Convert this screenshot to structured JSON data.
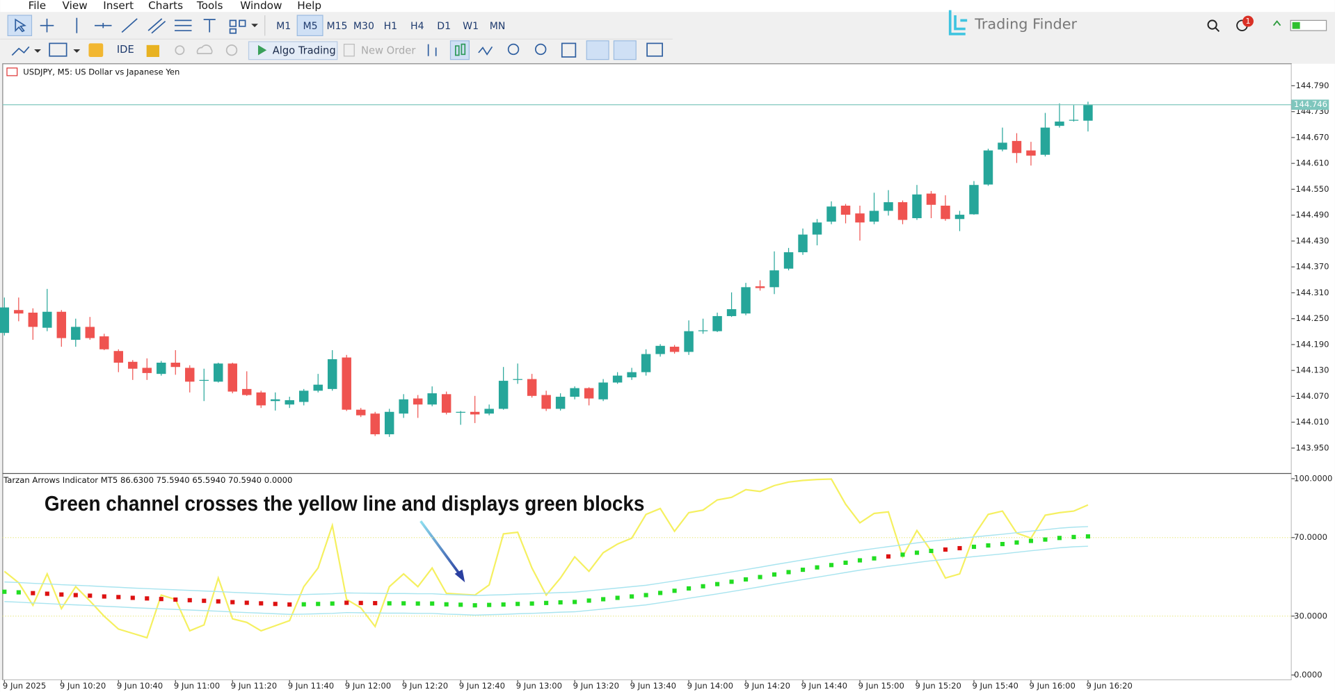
{
  "menu": [
    "File",
    "View",
    "Insert",
    "Charts",
    "Tools",
    "Window",
    "Help"
  ],
  "timeframes": [
    "M1",
    "M5",
    "M15",
    "M30",
    "H1",
    "H4",
    "D1",
    "W1",
    "MN"
  ],
  "toolbar": {
    "ide": "IDE",
    "algo_trading": "Algo Trading",
    "new_order": "New Order"
  },
  "brand": "Trading Finder",
  "notifications": 1,
  "chart_data": [
    {
      "type": "candlestick",
      "title": "USDJPY, M5:  US Dollar vs Japanese Yen",
      "open": [
        144.217,
        144.27,
        144.264,
        144.229,
        144.266,
        144.201,
        144.231,
        144.209,
        144.175,
        144.15,
        144.136,
        144.122,
        144.148,
        144.136,
        144.106,
        144.104,
        144.146,
        144.087,
        144.079,
        144.059,
        144.051,
        144.057,
        144.083,
        144.087,
        144.16,
        144.039,
        144.03,
        143.982,
        144.03,
        144.065,
        144.051,
        144.075,
        144.032,
        144.034,
        144.03,
        144.041,
        144.108,
        144.11,
        144.073,
        144.041,
        144.069,
        144.089,
        144.063,
        144.102,
        144.114,
        144.126,
        144.168,
        144.185,
        144.173,
        144.221,
        144.221,
        144.256,
        144.262,
        144.325,
        144.323,
        144.366,
        144.404,
        144.445,
        144.475,
        144.512,
        144.494,
        144.475,
        144.5,
        144.52,
        144.483,
        144.54,
        144.512,
        144.481,
        144.492,
        144.561,
        144.642,
        144.662,
        144.64,
        144.63,
        144.697,
        144.709,
        144.709
      ],
      "high": [
        144.299,
        144.299,
        144.274,
        144.319,
        144.27,
        144.25,
        144.254,
        144.215,
        144.179,
        144.154,
        144.158,
        144.152,
        144.177,
        144.142,
        144.134,
        144.148,
        144.148,
        144.128,
        144.083,
        144.079,
        144.069,
        144.087,
        144.122,
        144.177,
        144.166,
        144.043,
        144.034,
        144.041,
        144.075,
        144.073,
        144.093,
        144.081,
        144.036,
        144.071,
        144.051,
        144.138,
        144.146,
        144.122,
        144.083,
        144.077,
        144.093,
        144.091,
        144.11,
        144.126,
        144.136,
        144.179,
        144.191,
        144.189,
        144.246,
        144.25,
        144.264,
        144.311,
        144.333,
        144.339,
        144.406,
        144.414,
        144.459,
        144.481,
        144.522,
        144.516,
        144.512,
        144.542,
        144.548,
        144.524,
        144.56,
        144.546,
        144.536,
        144.5,
        144.569,
        144.644,
        144.693,
        144.68,
        144.66,
        144.727,
        144.749,
        144.745,
        144.753
      ],
      "low": [
        144.211,
        144.244,
        144.201,
        144.221,
        144.185,
        144.185,
        144.201,
        144.177,
        144.126,
        144.108,
        144.108,
        144.118,
        144.12,
        144.079,
        144.059,
        144.102,
        144.077,
        144.071,
        144.043,
        144.037,
        144.043,
        144.049,
        144.079,
        144.083,
        144.036,
        144.022,
        143.978,
        143.976,
        144.02,
        144.02,
        144.047,
        144.028,
        144.004,
        144.008,
        144.026,
        144.039,
        144.099,
        144.067,
        144.036,
        144.037,
        144.063,
        144.049,
        144.059,
        144.099,
        144.108,
        144.118,
        144.162,
        144.169,
        144.166,
        144.215,
        144.219,
        144.254,
        144.258,
        144.315,
        144.307,
        144.362,
        144.398,
        144.42,
        144.469,
        144.471,
        144.431,
        144.469,
        144.489,
        144.469,
        144.479,
        144.483,
        144.477,
        144.453,
        144.491,
        144.558,
        144.638,
        144.611,
        144.605,
        144.626,
        144.693,
        144.707,
        144.684
      ],
      "close": [
        144.276,
        144.262,
        144.231,
        144.266,
        144.205,
        144.231,
        144.205,
        144.179,
        144.148,
        144.134,
        144.124,
        144.148,
        144.138,
        144.104,
        144.108,
        144.146,
        144.081,
        144.073,
        144.049,
        144.063,
        144.061,
        144.083,
        144.097,
        144.156,
        144.039,
        144.026,
        143.982,
        144.034,
        144.063,
        144.051,
        144.077,
        144.032,
        144.034,
        144.028,
        144.041,
        144.106,
        144.11,
        144.071,
        144.041,
        144.069,
        144.089,
        144.065,
        144.102,
        144.118,
        144.126,
        144.168,
        144.187,
        144.173,
        144.221,
        144.223,
        144.256,
        144.272,
        144.323,
        144.321,
        144.362,
        144.404,
        144.445,
        144.473,
        144.51,
        144.491,
        144.473,
        144.5,
        144.52,
        144.479,
        144.538,
        144.514,
        144.481,
        144.491,
        144.56,
        144.64,
        144.658,
        144.634,
        144.628,
        144.693,
        144.707,
        144.711,
        144.746
      ],
      "up_color": "#26a69a",
      "down_color": "#ef5350",
      "last_price": 144.746,
      "last_price_color": "#7fc6bd",
      "ylim": [
        143.893,
        144.839
      ],
      "yticks": [
        {
          "value": 144.79,
          "label": "144.790"
        },
        {
          "value": 144.73,
          "label": "144.730"
        },
        {
          "value": 144.67,
          "label": "144.670"
        },
        {
          "value": 144.61,
          "label": "144.610"
        },
        {
          "value": 144.55,
          "label": "144.550"
        },
        {
          "value": 144.49,
          "label": "144.490"
        },
        {
          "value": 144.43,
          "label": "144.430"
        },
        {
          "value": 144.37,
          "label": "144.370"
        },
        {
          "value": 144.31,
          "label": "144.310"
        },
        {
          "value": 144.25,
          "label": "144.250"
        },
        {
          "value": 144.19,
          "label": "144.190"
        },
        {
          "value": 144.13,
          "label": "144.130"
        },
        {
          "value": 144.07,
          "label": "144.070"
        },
        {
          "value": 144.01,
          "label": "144.010"
        },
        {
          "value": 143.95,
          "label": "143.950"
        }
      ]
    },
    {
      "type": "line",
      "title": "Tarzan Arrows Indicator MT5 86.6300 75.5940 65.5940 70.5940 0.0000",
      "annotation": "Green channel crosses the yellow line and displays green blocks",
      "categories": [
        "9 Jun 2025",
        null,
        null,
        null,
        "9 Jun 10:20",
        null,
        null,
        null,
        "9 Jun 10:40",
        null,
        null,
        null,
        "9 Jun 11:00",
        null,
        null,
        null,
        "9 Jun 11:20",
        null,
        null,
        null,
        "9 Jun 11:40",
        null,
        null,
        null,
        "9 Jun 12:00",
        null,
        null,
        null,
        "9 Jun 12:20",
        null,
        null,
        null,
        "9 Jun 12:40",
        null,
        null,
        null,
        "9 Jun 13:00",
        null,
        null,
        null,
        "9 Jun 13:20",
        null,
        null,
        null,
        "9 Jun 13:40",
        null,
        null,
        null,
        "9 Jun 14:00",
        null,
        null,
        null,
        "9 Jun 14:20",
        null,
        null,
        null,
        "9 Jun 14:40",
        null,
        null,
        null,
        "9 Jun 15:00",
        null,
        null,
        null,
        "9 Jun 15:20",
        null,
        null,
        null,
        "9 Jun 15:40",
        null,
        null,
        null,
        "9 Jun 16:00",
        null,
        null,
        null,
        "9 Jun 16:20"
      ],
      "series": [
        {
          "color": "#f5f060",
          "values": [
            52.8,
            47,
            35.5,
            51.5,
            33.8,
            45,
            37.7,
            29.9,
            23.4,
            21.2,
            19,
            40.7,
            38.5,
            22.5,
            25.5,
            49.4,
            28.6,
            26.8,
            22.5,
            25.1,
            27.7,
            45,
            54.5,
            76.2,
            38.5,
            34.2,
            24.7,
            45,
            51.5,
            45,
            54.5,
            41.6,
            41.1,
            40.7,
            45.9,
            71.9,
            72.7,
            54.5,
            40.7,
            49.4,
            60.2,
            52.8,
            62.3,
            66.7,
            69.7,
            81.8,
            84.8,
            73.2,
            82.7,
            84,
            89.2,
            90.5,
            94.4,
            93.5,
            96.5,
            98.3,
            99.1,
            99.6,
            99.8,
            87,
            77.5,
            82.3,
            83.1,
            60.2,
            73.6,
            63.2,
            49.4,
            51.5,
            71,
            81.8,
            83.5,
            72.3,
            69.7,
            81.4,
            82.7,
            83.5,
            86.63
          ]
        },
        {
          "color": "#a8e4ef",
          "values": [
            47.4,
            47.1,
            46.7,
            46.4,
            46.0,
            45.7,
            45.4,
            45.0,
            44.7,
            44.3,
            44.0,
            43.7,
            43.4,
            43.1,
            42.8,
            42.5,
            42.1,
            41.8,
            41.5,
            41.2,
            40.9,
            41.0,
            41.2,
            41.4,
            41.8,
            41.7,
            41.6,
            41.5,
            41.5,
            41.4,
            41.4,
            41.0,
            40.8,
            40.5,
            40.7,
            40.9,
            41.2,
            41.4,
            41.7,
            42.0,
            42.2,
            42.9,
            43.6,
            44.3,
            45.0,
            45.7,
            46.8,
            47.9,
            49.1,
            50.2,
            51.3,
            52.5,
            53.7,
            54.9,
            56.2,
            57.4,
            58.6,
            59.8,
            61.0,
            62.2,
            63.4,
            64.4,
            65.4,
            66.3,
            67.3,
            68.2,
            68.9,
            69.6,
            70.3,
            71.0,
            71.7,
            72.5,
            73.3,
            74.0,
            74.8,
            75.3,
            75.594
          ]
        },
        {
          "color": "#a8e4ef",
          "values": [
            37.4,
            37.1,
            36.7,
            36.4,
            36.0,
            35.7,
            35.4,
            35.0,
            34.7,
            34.3,
            34.0,
            33.7,
            33.4,
            33.1,
            32.8,
            32.5,
            32.1,
            31.8,
            31.5,
            31.2,
            30.9,
            31.0,
            31.2,
            31.4,
            31.8,
            31.7,
            31.6,
            31.5,
            31.5,
            31.4,
            31.4,
            31.0,
            30.8,
            30.5,
            30.7,
            30.9,
            31.2,
            31.4,
            31.7,
            32.0,
            32.2,
            32.9,
            33.6,
            34.3,
            35.0,
            35.7,
            36.8,
            37.9,
            39.1,
            40.2,
            41.3,
            42.5,
            43.7,
            44.9,
            46.2,
            47.4,
            48.6,
            49.8,
            51.0,
            52.2,
            53.4,
            54.4,
            55.4,
            56.3,
            57.3,
            58.2,
            58.9,
            59.6,
            60.3,
            61.0,
            61.7,
            62.5,
            63.3,
            64.0,
            64.8,
            65.3,
            65.594
          ]
        },
        {
          "marker": "square",
          "values": [
            42.4,
            42.1,
            41.7,
            41.4,
            41.0,
            40.7,
            40.4,
            40.0,
            39.7,
            39.3,
            39.0,
            38.7,
            38.4,
            38.1,
            37.8,
            37.5,
            37.1,
            36.8,
            36.5,
            36.2,
            35.9,
            36.0,
            36.2,
            36.4,
            36.8,
            36.7,
            36.6,
            36.5,
            36.5,
            36.4,
            36.4,
            36.0,
            35.8,
            35.5,
            35.7,
            35.9,
            36.2,
            36.4,
            36.7,
            37.0,
            37.2,
            37.9,
            38.6,
            39.3,
            40.0,
            40.7,
            41.8,
            42.9,
            44.1,
            45.2,
            46.3,
            47.5,
            48.7,
            49.9,
            51.2,
            52.4,
            53.6,
            54.8,
            56.0,
            57.2,
            58.4,
            59.4,
            60.4,
            61.3,
            62.3,
            63.2,
            63.9,
            64.6,
            65.3,
            66.0,
            66.7,
            67.5,
            68.3,
            69.0,
            69.8,
            70.3,
            70.594
          ],
          "colors": [
            "#22dd22",
            "#22dd22",
            "#dd1111",
            "#dd1111",
            "#dd1111",
            "#dd1111",
            "#dd1111",
            "#dd1111",
            "#dd1111",
            "#dd1111",
            "#dd1111",
            "#dd1111",
            "#dd1111",
            "#dd1111",
            "#dd1111",
            "#dd1111",
            "#dd1111",
            "#dd1111",
            "#dd1111",
            "#dd1111",
            "#dd1111",
            "#22dd22",
            "#22dd22",
            "#22dd22",
            "#dd1111",
            "#dd1111",
            "#dd1111",
            "#22dd22",
            "#22dd22",
            "#22dd22",
            "#22dd22",
            "#22dd22",
            "#22dd22",
            "#22dd22",
            "#22dd22",
            "#22dd22",
            "#22dd22",
            "#22dd22",
            "#22dd22",
            "#22dd22",
            "#22dd22",
            "#22dd22",
            "#22dd22",
            "#22dd22",
            "#22dd22",
            "#22dd22",
            "#22dd22",
            "#22dd22",
            "#22dd22",
            "#22dd22",
            "#22dd22",
            "#22dd22",
            "#22dd22",
            "#22dd22",
            "#22dd22",
            "#22dd22",
            "#22dd22",
            "#22dd22",
            "#22dd22",
            "#22dd22",
            "#22dd22",
            "#22dd22",
            "#dd1111",
            "#22dd22",
            "#22dd22",
            "#22dd22",
            "#dd1111",
            "#dd1111",
            "#22dd22",
            "#22dd22",
            "#22dd22",
            "#22dd22",
            "#22dd22",
            "#22dd22",
            "#22dd22",
            "#22dd22",
            "#22dd22"
          ]
        }
      ],
      "levels": [
        70,
        30
      ],
      "level_color": "#e8e880",
      "ylim": [
        -2.6,
        102.2
      ],
      "yticks": [
        {
          "value": 100,
          "label": "100.0000"
        },
        {
          "value": 70,
          "label": "70.0000"
        },
        {
          "value": 30,
          "label": "30.0000"
        },
        {
          "value": 0,
          "label": "0.0000"
        }
      ]
    }
  ]
}
